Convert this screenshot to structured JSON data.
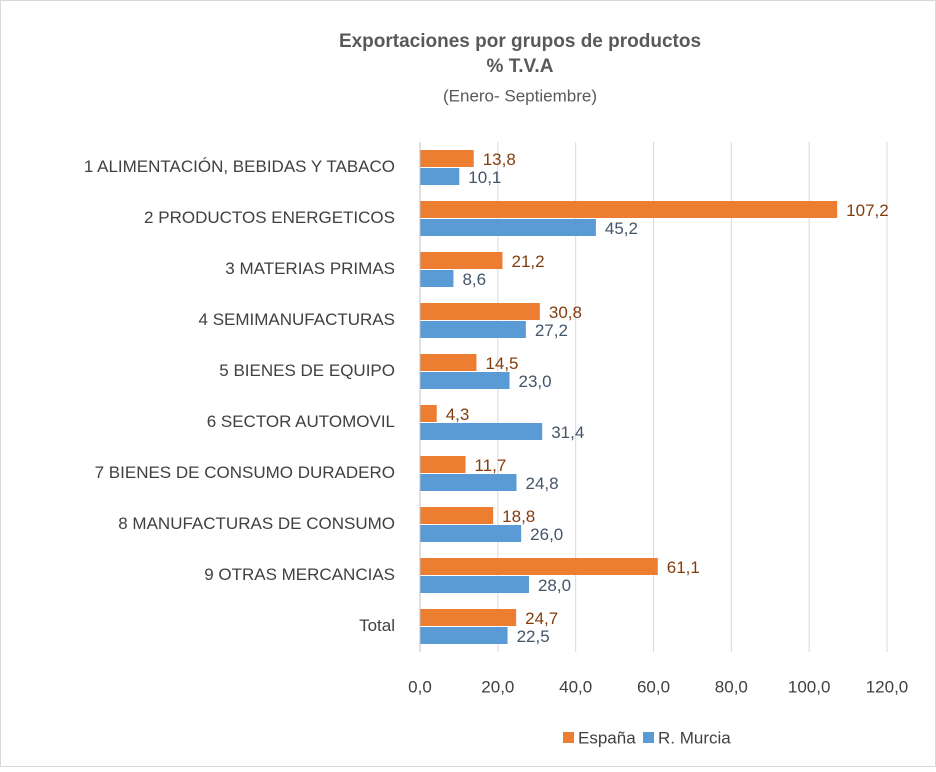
{
  "chart_data": {
    "type": "hbar",
    "title": "Exportaciones por grupos de productos",
    "subtitle": "% T.V.A",
    "note": "(Enero- Septiembre)",
    "categories": [
      "1 ALIMENTACIÓN, BEBIDAS Y TABACO",
      "2 PRODUCTOS ENERGETICOS",
      "3 MATERIAS PRIMAS",
      "4 SEMIMANUFACTURAS",
      "5 BIENES DE EQUIPO",
      "6 SECTOR AUTOMOVIL",
      "7 BIENES DE CONSUMO DURADERO",
      "8 MANUFACTURAS DE CONSUMO",
      "9 OTRAS MERCANCIAS",
      "Total"
    ],
    "series": [
      {
        "name": "España",
        "color": "#ed7d31",
        "label_color": "#843c0c",
        "values": [
          13.8,
          107.2,
          21.2,
          30.8,
          14.5,
          4.3,
          11.7,
          18.8,
          61.1,
          24.7
        ],
        "value_labels": [
          "13,8",
          "107,2",
          "21,2",
          "30,8",
          "14,5",
          "4,3",
          "11,7",
          "18,8",
          "61,1",
          "24,7"
        ]
      },
      {
        "name": "R. Murcia",
        "color": "#5b9bd5",
        "label_color": "#44546a",
        "values": [
          10.1,
          45.2,
          8.6,
          27.2,
          23.0,
          31.4,
          24.8,
          26.0,
          28.0,
          22.5
        ],
        "value_labels": [
          "10,1",
          "45,2",
          "8,6",
          "27,2",
          "23,0",
          "31,4",
          "24,8",
          "26,0",
          "28,0",
          "22,5"
        ]
      }
    ],
    "xlim": [
      0,
      120
    ],
    "xticks": [
      {
        "value": 0,
        "label": "0,0"
      },
      {
        "value": 20,
        "label": "20,0"
      },
      {
        "value": 40,
        "label": "40,0"
      },
      {
        "value": 60,
        "label": "60,0"
      },
      {
        "value": 80,
        "label": "80,0"
      },
      {
        "value": 100,
        "label": "100,0"
      },
      {
        "value": 120,
        "label": "120,0"
      }
    ],
    "grid": true,
    "legend": "bottom"
  }
}
